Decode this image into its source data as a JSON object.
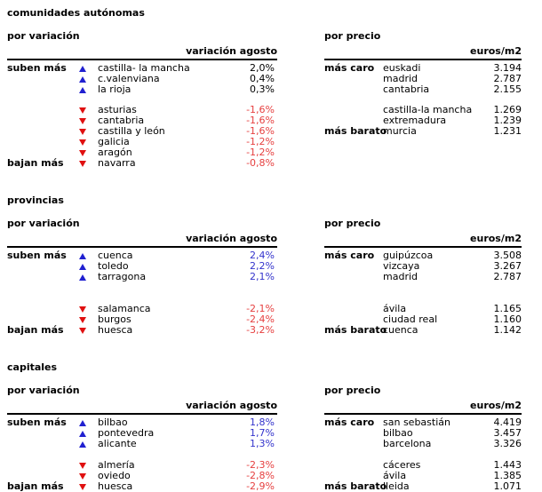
{
  "colors": {
    "text": "#000000",
    "rule": "#000000",
    "positive_value_plain": "#000000",
    "positive_value_blue": "#3333cc",
    "negative_value_red": "#e64040",
    "triangle_up_blue": "#2020d0",
    "triangle_down_red": "#e01010",
    "background": "#ffffff"
  },
  "icons": {
    "up_triangle": {
      "name": "up-triangle-icon",
      "glyph": "▲",
      "color": "#2020d0"
    },
    "down_triangle": {
      "name": "down-triangle-icon",
      "glyph": "▼",
      "color": "#e01010"
    }
  },
  "sections": [
    {
      "title": "comunidades autónomas",
      "variation": {
        "heading": "por variación",
        "column_header": "variación agosto",
        "up_label": "suben más",
        "down_label": "bajan más",
        "up_value_color": "#000000",
        "down_value_color": "#e64040",
        "up": [
          {
            "name": "castilla- la mancha",
            "value": "2,0%"
          },
          {
            "name": "c.valenviana",
            "value": "0,4%"
          },
          {
            "name": "la rioja",
            "value": "0,3%"
          }
        ],
        "down": [
          {
            "name": "asturias",
            "value": "-1,6%"
          },
          {
            "name": "cantabria",
            "value": "-1,6%"
          },
          {
            "name": "castilla y león",
            "value": "-1,6%"
          },
          {
            "name": "galicia",
            "value": "-1,2%"
          },
          {
            "name": "aragón",
            "value": "-1,2%"
          },
          {
            "name": "navarra",
            "value": "-0,8%"
          }
        ]
      },
      "price": {
        "heading": "por precio",
        "column_header": "euros/m2",
        "top_label": "más caro",
        "bottom_label": "más barato",
        "expensive": [
          {
            "name": "euskadi",
            "value": "3.194"
          },
          {
            "name": "madrid",
            "value": "2.787"
          },
          {
            "name": "cantabria",
            "value": "2.155"
          }
        ],
        "cheap": [
          {
            "name": "castilla-la mancha",
            "value": "1.269"
          },
          {
            "name": "extremadura",
            "value": "1.239"
          },
          {
            "name": "murcia",
            "value": "1.231"
          }
        ]
      }
    },
    {
      "title": "provincias",
      "variation": {
        "heading": "por variación",
        "column_header": "variación agosto",
        "up_label": "suben más",
        "down_label": "bajan más",
        "up_value_color": "#3333cc",
        "down_value_color": "#e64040",
        "up": [
          {
            "name": "cuenca",
            "value": "2,4%"
          },
          {
            "name": "toledo",
            "value": "2,2%"
          },
          {
            "name": "tarragona",
            "value": "2,1%"
          }
        ],
        "down": [
          {
            "name": "salamanca",
            "value": "-2,1%"
          },
          {
            "name": "burgos",
            "value": "-2,4%"
          },
          {
            "name": "huesca",
            "value": "-3,2%"
          }
        ]
      },
      "price": {
        "heading": "por precio",
        "column_header": "euros/m2",
        "top_label": "más caro",
        "bottom_label": "más barato",
        "expensive": [
          {
            "name": "guipúzcoa",
            "value": "3.508"
          },
          {
            "name": "vizcaya",
            "value": "3.267"
          },
          {
            "name": "madrid",
            "value": "2.787"
          }
        ],
        "cheap": [
          {
            "name": "ávila",
            "value": "1.165"
          },
          {
            "name": "ciudad real",
            "value": "1.160"
          },
          {
            "name": "cuenca",
            "value": "1.142"
          }
        ]
      }
    },
    {
      "title": "capitales",
      "variation": {
        "heading": "por variación",
        "column_header": "variación agosto",
        "up_label": "suben más",
        "down_label": "bajan más",
        "up_value_color": "#3333cc",
        "down_value_color": "#e64040",
        "up": [
          {
            "name": "bilbao",
            "value": "1,8%"
          },
          {
            "name": "pontevedra",
            "value": "1,7%"
          },
          {
            "name": "alicante",
            "value": "1,3%"
          }
        ],
        "down": [
          {
            "name": "almería",
            "value": "-2,3%"
          },
          {
            "name": "oviedo",
            "value": "-2,8%"
          },
          {
            "name": "huesca",
            "value": "-2,9%"
          }
        ]
      },
      "price": {
        "heading": "por precio",
        "column_header": "euros/m2",
        "top_label": "más caro",
        "bottom_label": "más barato",
        "expensive": [
          {
            "name": "san sebastián",
            "value": "4.419"
          },
          {
            "name": "bilbao",
            "value": "3.457"
          },
          {
            "name": "barcelona",
            "value": "3.326"
          }
        ],
        "cheap": [
          {
            "name": "cáceres",
            "value": "1.443"
          },
          {
            "name": "ávila",
            "value": "1.385"
          },
          {
            "name": "lleida",
            "value": "1.071"
          }
        ]
      }
    }
  ]
}
